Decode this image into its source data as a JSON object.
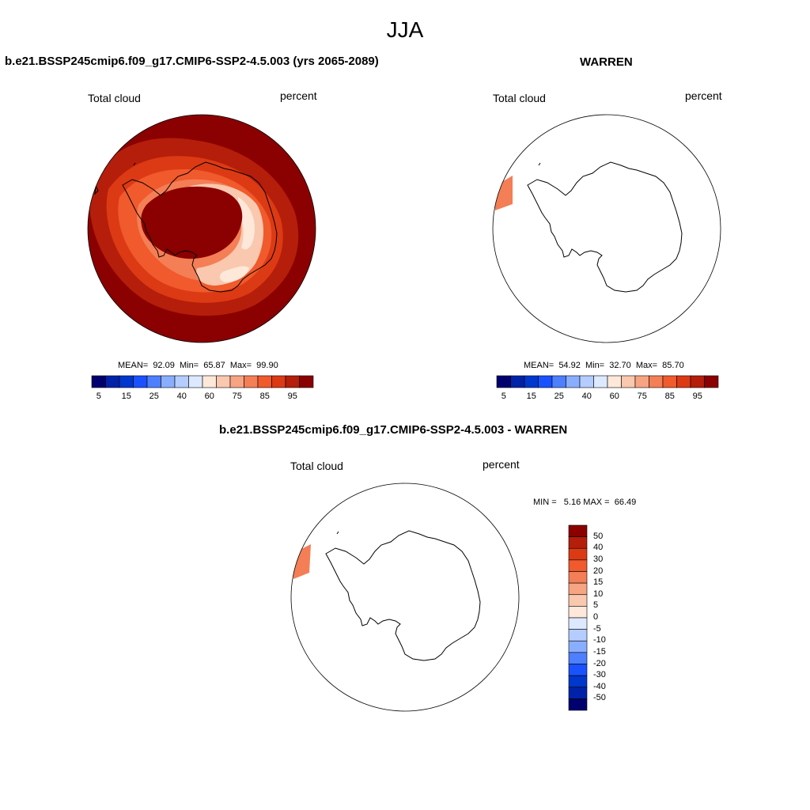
{
  "season": "JJA",
  "panels": {
    "model": {
      "title": "b.e21.BSSP245cmip6.f09_g17.CMIP6-SSP2-4.5.003 (yrs 2065-2089)",
      "variable": "Total cloud",
      "units": "percent",
      "stats": "MEAN=  92.09  Min=  65.87  Max=  99.90"
    },
    "obs": {
      "title": "WARREN",
      "variable": "Total cloud",
      "units": "percent",
      "stats": "MEAN=  54.92  Min=  32.70  Max=  85.70"
    },
    "diff": {
      "title": "b.e21.BSSP245cmip6.f09_g17.CMIP6-SSP2-4.5.003 - WARREN",
      "variable": "Total cloud",
      "units": "percent",
      "stats": "MIN =   5.16 MAX =  66.49"
    }
  },
  "colorbar": {
    "colors": [
      "#00006e",
      "#0022a8",
      "#0037cc",
      "#1a52ff",
      "#4d7fff",
      "#8aaeff",
      "#b5ccff",
      "#dde9ff",
      "#fde8da",
      "#f9c8ae",
      "#f7a482",
      "#f47e56",
      "#f05a2c",
      "#dc3a14",
      "#b51e0a",
      "#8b0000"
    ],
    "labels": [
      "5",
      "15",
      "25",
      "40",
      "60",
      "75",
      "85",
      "95"
    ],
    "diff_labels": [
      "50",
      "40",
      "30",
      "20",
      "15",
      "10",
      "5",
      "0",
      "-5",
      "-10",
      "-15",
      "-20",
      "-30",
      "-40",
      "-50"
    ]
  },
  "map_colors": {
    "dark": "#8b0000",
    "c1": "#b51e0a",
    "c2": "#dc3a14",
    "c3": "#f05a2c",
    "c4": "#f47e56",
    "c5": "#f7a482",
    "c6": "#f9c8ae",
    "c7": "#fde8da",
    "obs_patch": "#f47e56",
    "coast": "#000000"
  }
}
